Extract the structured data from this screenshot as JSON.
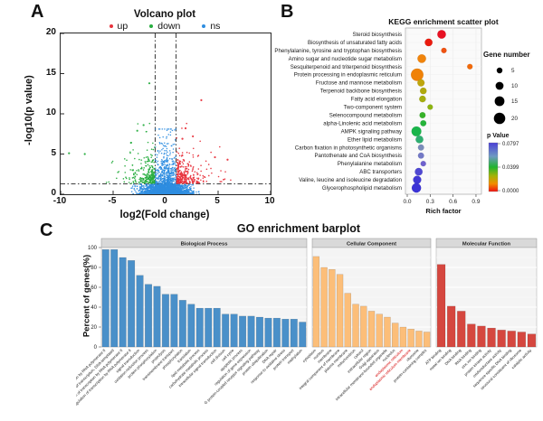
{
  "panels": {
    "a": {
      "label": "A"
    },
    "b": {
      "label": "B"
    },
    "c": {
      "label": "C"
    }
  },
  "chart_data": [
    {
      "id": "volcano",
      "type": "scatter",
      "title": "Volcano plot",
      "xlabel": "log2(Fold change)",
      "ylabel": "-log10(p value)",
      "xlim": [
        -10,
        10
      ],
      "ylim": [
        0,
        20
      ],
      "xticks": [
        -10,
        -5,
        0,
        5,
        10
      ],
      "yticks": [
        0,
        5,
        10,
        15,
        20
      ],
      "threshold_lines": {
        "vertical_x": [
          -1,
          1
        ],
        "horizontal_y": 1.3,
        "style": "dash-dot"
      },
      "legend": [
        {
          "name": "up",
          "color": "#e8323c"
        },
        {
          "name": "down",
          "color": "#27ad3f"
        },
        {
          "name": "ns",
          "color": "#2e8de0"
        }
      ],
      "generator": {
        "seed": 7,
        "ns_bottom_count": 1700,
        "ns_central_count": 900,
        "down_count": 260,
        "up_count": 300
      },
      "outliers": {
        "down": [
          [
            -9.2,
            5.1
          ],
          [
            -7.7,
            5.0
          ],
          [
            -1.55,
            13.8
          ],
          [
            -2.7,
            7.9
          ],
          [
            -3.3,
            6.4
          ],
          [
            -2.1,
            8.6
          ]
        ],
        "up": [
          [
            3.4,
            11.7
          ],
          [
            1.9,
            8.2
          ],
          [
            2.6,
            7.2
          ],
          [
            5.9,
            4.3
          ],
          [
            4.7,
            4.6
          ],
          [
            1.6,
            6.9
          ]
        ]
      }
    },
    {
      "id": "kegg",
      "type": "scatter",
      "title": "KEGG enrichment scatter plot",
      "xlabel": "Rich factor",
      "xticks": [
        0.0,
        0.3,
        0.6,
        0.9
      ],
      "size_legend": {
        "title": "Gene number",
        "values": [
          5,
          10,
          15,
          20
        ]
      },
      "color_legend": {
        "title": "p Value",
        "tick_labels": [
          "0.0797",
          "0.0399",
          "0.0000"
        ],
        "gradient_stops": [
          "#4b3fd6",
          "#6f9ac2",
          "#21b42f",
          "#a3b308",
          "#f28d00",
          "#ee1111"
        ],
        "gradient_positions": [
          0,
          0.28,
          0.5,
          0.68,
          0.84,
          1
        ]
      },
      "pathways": [
        {
          "name": "Steroid biosynthesis",
          "rich_factor": 0.45,
          "gene_number": 10,
          "color": "#e81123"
        },
        {
          "name": "Biosynthesis of unsaturated fatty acids",
          "rich_factor": 0.28,
          "gene_number": 8,
          "color": "#ea1b0f"
        },
        {
          "name": "Phenylalanine, tyrosine and tryptophan biosynthesis",
          "rich_factor": 0.48,
          "gene_number": 4,
          "color": "#ef5211"
        },
        {
          "name": "Amino sugar and nucleotide sugar metabolism",
          "rich_factor": 0.19,
          "gene_number": 10,
          "color": "#f0840c"
        },
        {
          "name": "Sesquiterpenoid and triterpenoid biosynthesis",
          "rich_factor": 0.82,
          "gene_number": 4,
          "color": "#f26a0a"
        },
        {
          "name": "Protein processing in endoplasmic reticulum",
          "rich_factor": 0.13,
          "gene_number": 21,
          "color": "#f08207"
        },
        {
          "name": "Fructose and mannose metabolism",
          "rich_factor": 0.18,
          "gene_number": 7,
          "color": "#bfa60c"
        },
        {
          "name": "Terpenoid backbone biosynthesis",
          "rich_factor": 0.21,
          "gene_number": 6,
          "color": "#b0a90e"
        },
        {
          "name": "Fatty acid elongation",
          "rich_factor": 0.2,
          "gene_number": 6,
          "color": "#a5ad10"
        },
        {
          "name": "Two-component system",
          "rich_factor": 0.3,
          "gene_number": 4,
          "color": "#8db412"
        },
        {
          "name": "Selenocompound metabolism",
          "rich_factor": 0.2,
          "gene_number": 5,
          "color": "#37b22a"
        },
        {
          "name": "alpha-Linolenic acid metabolism",
          "rich_factor": 0.21,
          "gene_number": 5,
          "color": "#25b43a"
        },
        {
          "name": "AMPK signaling pathway",
          "rich_factor": 0.12,
          "gene_number": 13,
          "color": "#19b54b"
        },
        {
          "name": "Ether lipid metabolism",
          "rich_factor": 0.16,
          "gene_number": 8,
          "color": "#2fae70"
        },
        {
          "name": "Carbon fixation in photosynthetic organisms",
          "rich_factor": 0.18,
          "gene_number": 5,
          "color": "#7a8cba"
        },
        {
          "name": "Pantothenate and CoA biosynthesis",
          "rich_factor": 0.18,
          "gene_number": 5,
          "color": "#7379c6"
        },
        {
          "name": "Phenylalanine metabolism",
          "rich_factor": 0.21,
          "gene_number": 4,
          "color": "#6f62ce"
        },
        {
          "name": "ABC transporters",
          "rich_factor": 0.15,
          "gene_number": 8,
          "color": "#4f48d2"
        },
        {
          "name": "Valine, leucine and isoleucine degradation",
          "rich_factor": 0.13,
          "gene_number": 9,
          "color": "#4038d5"
        },
        {
          "name": "Glycerophospholipid metabolism",
          "rich_factor": 0.12,
          "gene_number": 12,
          "color": "#3b33d6"
        }
      ]
    },
    {
      "id": "go",
      "type": "bar",
      "title": "GO enrichment barplot",
      "ylabel": "Percent of genes(%)",
      "ylim": [
        0,
        100
      ],
      "yticks": [
        0,
        20,
        40,
        60,
        80,
        100
      ],
      "facets": [
        {
          "name": "Biological Process",
          "color": "#4a90c9",
          "categories": [
            "regulation of transcription by RNA polymerase II",
            "regulation of transcription, DNA-templated",
            "positive regulation of transcription by RNA polymerase II",
            "negative regulation of transcription by RNA polymerase II",
            "signal transduction",
            "oxidation-reduction process",
            "protein phosphorylation",
            "proteolysis",
            "transmembrane transport",
            "phosphorylation",
            "translation",
            "lipid metabolic process",
            "carbohydrate metabolic process",
            "intracellular signal transduction",
            "cell division",
            "cell cycle",
            "apoptotic process",
            "regulation of gene expression",
            "G protein-coupled receptor signaling pathway",
            "protein ubiquitination",
            "DNA repair",
            "response to oxidative stress",
            "protein transport",
            "methylation"
          ],
          "values": [
            98,
            98,
            90,
            87,
            72,
            63,
            61,
            53,
            53,
            47,
            43,
            39,
            39,
            39,
            33,
            33,
            31,
            31,
            30,
            29,
            29,
            28,
            28,
            25
          ],
          "red_label_indices": []
        },
        {
          "name": "Cellular Component",
          "color": "#fcbe79",
          "categories": [
            "cytoplasm",
            "nucleus",
            "membrane",
            "integral component of membrane",
            "plasma membrane",
            "mitochondrion",
            "cytosol",
            "extracellular region",
            "Golgi apparatus",
            "intracellular membrane-bounded organelle",
            "nucleolus",
            "endoplasmic reticulum",
            "endoplasmic reticulum membrane",
            "ribosome",
            "protein-containing complex"
          ],
          "values": [
            91,
            80,
            78,
            73,
            54,
            43,
            41,
            36,
            33,
            30,
            24,
            20,
            18,
            16,
            15
          ],
          "red_label_indices": [
            11,
            12
          ]
        },
        {
          "name": "Molecular Function",
          "color": "#d5473f",
          "categories": [
            "ATP binding",
            "metal ion binding",
            "DNA binding",
            "RNA binding",
            "zinc ion binding",
            "protein kinase activity",
            "oxidoreductase activity",
            "sequence-specific DNA binding",
            "structural constituent of ribosome",
            "catalytic activity"
          ],
          "values": [
            83,
            41,
            36,
            23,
            21,
            19,
            17,
            16,
            15,
            13
          ],
          "red_label_indices": []
        }
      ]
    }
  ]
}
